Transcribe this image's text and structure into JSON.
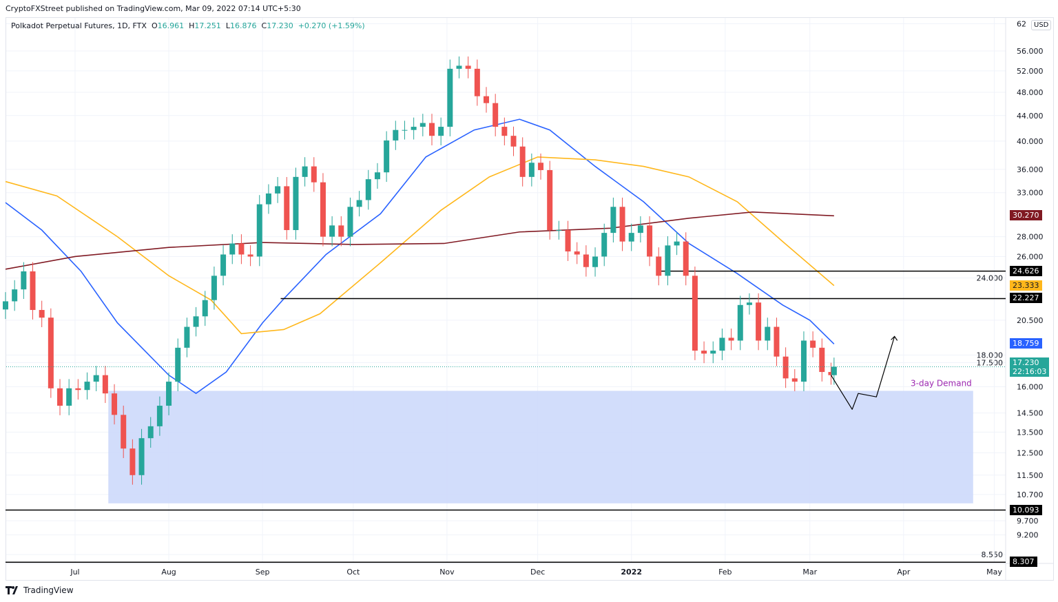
{
  "publisher_line": "CryptoFXStreet published on TradingView.com, Mar 09, 2022 07:14 UTC+5:30",
  "legend": {
    "symbol": "Polkadot Perpetual Futures, 1D, FTX",
    "o_label": "O",
    "o": "16.961",
    "h_label": "H",
    "h": "17.251",
    "l_label": "L",
    "l": "16.876",
    "c_label": "C",
    "c": "17.230",
    "change": "+0.270 (+1.59%)"
  },
  "currency": "USD",
  "footer": {
    "brand": "TradingView"
  },
  "colors": {
    "up": "#26a69a",
    "down": "#ef5350",
    "ma_blue": "#2962ff",
    "ma_yellow": "#ffb71b",
    "ma_maroon": "#801922",
    "zone": "#cdd9fb",
    "annotation": "#9c27b0"
  },
  "chart_data": {
    "type": "candlestick",
    "y_scale": "log",
    "ylim": [
      8.3,
      62
    ],
    "xlim": [
      "2021-06-08",
      "2022-05-20"
    ],
    "grid": true,
    "x_ticks": [
      {
        "d": "2021-07-01",
        "label": "Jul"
      },
      {
        "d": "2021-08-01",
        "label": "Aug"
      },
      {
        "d": "2021-09-01",
        "label": "Sep"
      },
      {
        "d": "2021-10-01",
        "label": "Oct"
      },
      {
        "d": "2021-11-01",
        "label": "Nov"
      },
      {
        "d": "2021-12-01",
        "label": "Dec"
      },
      {
        "d": "2022-01-01",
        "label": "2022"
      },
      {
        "d": "2022-02-01",
        "label": "Feb"
      },
      {
        "d": "2022-03-01",
        "label": "Mar"
      },
      {
        "d": "2022-04-01",
        "label": "Apr"
      },
      {
        "d": "2022-05-01",
        "label": "May"
      }
    ],
    "y_ticks": [
      "62",
      "56.000",
      "52.000",
      "48.000",
      "44.000",
      "40.000",
      "36.000",
      "33.000",
      "28.000",
      "26.000",
      "24.000",
      "20.500",
      "18.000",
      "17.500",
      "16.000",
      "14.500",
      "13.500",
      "12.500",
      "11.500",
      "10.700",
      "9.700",
      "9.200",
      "8.550"
    ],
    "closes": [
      [
        "2021-06-08",
        22
      ],
      [
        "2021-06-11",
        23
      ],
      [
        "2021-06-14",
        24.6
      ],
      [
        "2021-06-17",
        21.3
      ],
      [
        "2021-06-20",
        20.7
      ],
      [
        "2021-06-23",
        15.9
      ],
      [
        "2021-06-26",
        14.9
      ],
      [
        "2021-06-29",
        15.9
      ],
      [
        "2021-07-02",
        15.8
      ],
      [
        "2021-07-05",
        16.3
      ],
      [
        "2021-07-08",
        16.7
      ],
      [
        "2021-07-11",
        15.6
      ],
      [
        "2021-07-14",
        14.4
      ],
      [
        "2021-07-17",
        12.7
      ],
      [
        "2021-07-20",
        11.5
      ],
      [
        "2021-07-23",
        13.2
      ],
      [
        "2021-07-26",
        13.8
      ],
      [
        "2021-07-29",
        14.9
      ],
      [
        "2021-08-01",
        16.3
      ],
      [
        "2021-08-04",
        18.5
      ],
      [
        "2021-08-07",
        20
      ],
      [
        "2021-08-10",
        20.8
      ],
      [
        "2021-08-13",
        22.1
      ],
      [
        "2021-08-16",
        24.2
      ],
      [
        "2021-08-19",
        26.2
      ],
      [
        "2021-08-22",
        27.3
      ],
      [
        "2021-08-25",
        26.2
      ],
      [
        "2021-08-28",
        26
      ],
      [
        "2021-08-31",
        31.6
      ],
      [
        "2021-09-03",
        32.9
      ],
      [
        "2021-09-06",
        33.8
      ],
      [
        "2021-09-09",
        28.7
      ],
      [
        "2021-09-12",
        35
      ],
      [
        "2021-09-15",
        36.4
      ],
      [
        "2021-09-18",
        34.3
      ],
      [
        "2021-09-21",
        28
      ],
      [
        "2021-09-24",
        29.2
      ],
      [
        "2021-09-27",
        28
      ],
      [
        "2021-09-30",
        31.3
      ],
      [
        "2021-10-03",
        32.1
      ],
      [
        "2021-10-06",
        34.7
      ],
      [
        "2021-10-09",
        35.6
      ],
      [
        "2021-10-12",
        40.1
      ],
      [
        "2021-10-15",
        41.7
      ],
      [
        "2021-10-18",
        41.7
      ],
      [
        "2021-10-21",
        42.2
      ],
      [
        "2021-10-24",
        42.8
      ],
      [
        "2021-10-27",
        40.8
      ],
      [
        "2021-10-30",
        42.2
      ],
      [
        "2021-11-02",
        52.4
      ],
      [
        "2021-11-05",
        53
      ],
      [
        "2021-11-08",
        52.4
      ],
      [
        "2021-11-11",
        47.3
      ],
      [
        "2021-11-14",
        46.1
      ],
      [
        "2021-11-17",
        42.2
      ],
      [
        "2021-11-20",
        40.8
      ],
      [
        "2021-11-23",
        39.2
      ],
      [
        "2021-11-26",
        35
      ],
      [
        "2021-11-29",
        36.9
      ],
      [
        "2021-12-02",
        35.9
      ],
      [
        "2021-12-05",
        28.7
      ],
      [
        "2021-12-08",
        28.7
      ],
      [
        "2021-12-11",
        26.5
      ],
      [
        "2021-12-14",
        26.2
      ],
      [
        "2021-12-17",
        25
      ],
      [
        "2021-12-20",
        26
      ],
      [
        "2021-12-23",
        28.4
      ],
      [
        "2021-12-26",
        31.3
      ],
      [
        "2021-12-29",
        27.5
      ],
      [
        "2022-01-01",
        28.4
      ],
      [
        "2022-01-04",
        29.2
      ],
      [
        "2022-01-07",
        26
      ],
      [
        "2022-01-10",
        24.2
      ],
      [
        "2022-01-13",
        27.1
      ],
      [
        "2022-01-16",
        27.5
      ],
      [
        "2022-01-19",
        24.2
      ],
      [
        "2022-01-22",
        18.3
      ],
      [
        "2022-01-25",
        18.1
      ],
      [
        "2022-01-28",
        18.3
      ],
      [
        "2022-01-31",
        19.2
      ],
      [
        "2022-02-03",
        19
      ],
      [
        "2022-02-06",
        21.7
      ],
      [
        "2022-02-09",
        21.9
      ],
      [
        "2022-02-12",
        19
      ],
      [
        "2022-02-15",
        20
      ],
      [
        "2022-02-18",
        17.9
      ],
      [
        "2022-02-21",
        16.5
      ],
      [
        "2022-02-24",
        16.3
      ],
      [
        "2022-02-27",
        19
      ],
      [
        "2022-03-02",
        18.5
      ],
      [
        "2022-03-05",
        16.9
      ],
      [
        "2022-03-08",
        16.7
      ],
      [
        "2022-03-09",
        17.23
      ]
    ],
    "moving_averages": [
      {
        "color": "#2962ff",
        "last": "18.759",
        "points": [
          [
            "2021-06-08",
            31.8
          ],
          [
            "2021-06-20",
            28.7
          ],
          [
            "2021-07-03",
            24.6
          ],
          [
            "2021-07-15",
            20.3
          ],
          [
            "2021-08-01",
            16.7
          ],
          [
            "2021-08-10",
            15.6
          ],
          [
            "2021-08-20",
            16.9
          ],
          [
            "2021-09-01",
            20.3
          ],
          [
            "2021-09-08",
            22.2
          ],
          [
            "2021-09-22",
            26.2
          ],
          [
            "2021-10-10",
            30.5
          ],
          [
            "2021-10-25",
            37.7
          ],
          [
            "2021-11-10",
            41.7
          ],
          [
            "2021-11-25",
            43.4
          ],
          [
            "2021-12-05",
            41.7
          ],
          [
            "2021-12-20",
            36.4
          ],
          [
            "2022-01-05",
            31.9
          ],
          [
            "2022-01-20",
            27.3
          ],
          [
            "2022-02-05",
            24.4
          ],
          [
            "2022-02-20",
            21.7
          ],
          [
            "2022-03-01",
            20.5
          ],
          [
            "2022-03-09",
            18.76
          ]
        ]
      },
      {
        "color": "#ffb71b",
        "last": "23.333",
        "points": [
          [
            "2021-06-08",
            34.4
          ],
          [
            "2021-06-25",
            32.6
          ],
          [
            "2021-07-15",
            28
          ],
          [
            "2021-08-01",
            24.2
          ],
          [
            "2021-08-15",
            22.1
          ],
          [
            "2021-08-25",
            19.5
          ],
          [
            "2021-09-08",
            19.8
          ],
          [
            "2021-09-20",
            21
          ],
          [
            "2021-10-10",
            25.4
          ],
          [
            "2021-10-30",
            30.9
          ],
          [
            "2021-11-15",
            35
          ],
          [
            "2021-12-01",
            37.7
          ],
          [
            "2021-12-20",
            37.3
          ],
          [
            "2022-01-05",
            36.4
          ],
          [
            "2022-01-20",
            35
          ],
          [
            "2022-02-05",
            31.9
          ],
          [
            "2022-02-20",
            27.5
          ],
          [
            "2022-03-09",
            23.33
          ]
        ]
      },
      {
        "color": "#801922",
        "last": "30.270",
        "points": [
          [
            "2021-06-08",
            24.8
          ],
          [
            "2021-07-01",
            26
          ],
          [
            "2021-08-01",
            26.9
          ],
          [
            "2021-09-01",
            27.4
          ],
          [
            "2021-10-01",
            27.2
          ],
          [
            "2021-10-31",
            27.3
          ],
          [
            "2021-11-25",
            28.5
          ],
          [
            "2021-12-25",
            28.9
          ],
          [
            "2022-01-20",
            30
          ],
          [
            "2022-02-10",
            30.7
          ],
          [
            "2022-03-09",
            30.27
          ]
        ]
      }
    ],
    "horizontal_lines": [
      {
        "from": "2022-01-10",
        "price": 24.626,
        "label": "24.626"
      },
      {
        "from": "2021-09-07",
        "price": 22.227,
        "label": "22.227"
      },
      {
        "from": "2021-06-08",
        "price": 10.093,
        "label": "10.093"
      },
      {
        "from": "2021-06-08",
        "price": 8.307,
        "label": "8.307"
      }
    ],
    "demand_zone": {
      "label": "3-day Demand",
      "from": "2021-07-12",
      "to": "2022-04-24",
      "top": 15.75,
      "bottom": 10.35
    },
    "projection": [
      [
        "2022-03-08",
        16.7
      ],
      [
        "2022-03-15",
        14.7
      ],
      [
        "2022-03-17",
        15.6
      ],
      [
        "2022-03-23",
        15.4
      ],
      [
        "2022-03-29",
        19.3
      ]
    ],
    "last_price": {
      "value": "17.230",
      "countdown": "22:16:03"
    }
  }
}
